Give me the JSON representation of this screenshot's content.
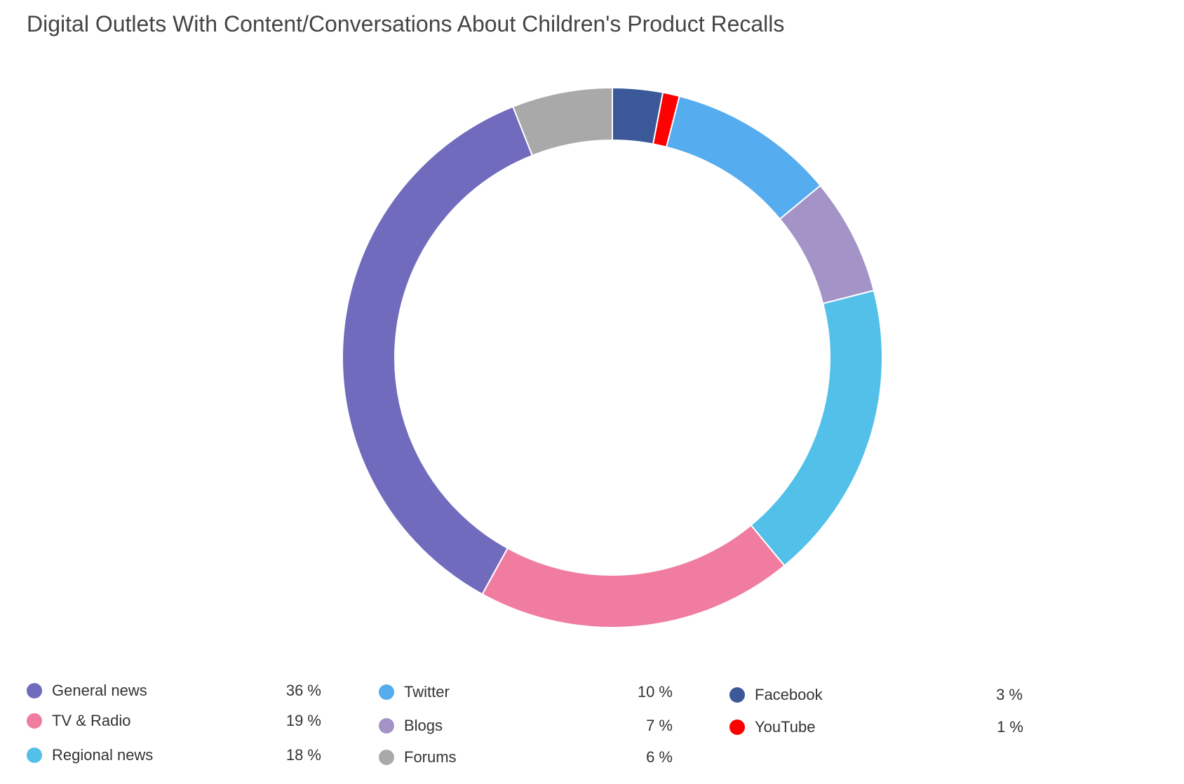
{
  "chart_data": {
    "type": "pie",
    "subtype": "donut",
    "title": "Digital Outlets With Content/Conversations About Children's Product Recalls",
    "slices": [
      {
        "label": "Facebook",
        "value": 3,
        "value_label": "3 %",
        "color": "#3b5998"
      },
      {
        "label": "YouTube",
        "value": 1,
        "value_label": "1 %",
        "color": "#ff0000"
      },
      {
        "label": "Twitter",
        "value": 10,
        "value_label": "10 %",
        "color": "#55acee"
      },
      {
        "label": "Blogs",
        "value": 7,
        "value_label": "7 %",
        "color": "#a393c6"
      },
      {
        "label": "Regional news",
        "value": 18,
        "value_label": "18 %",
        "color": "#52c0e8"
      },
      {
        "label": "TV & Radio",
        "value": 19,
        "value_label": "19 %",
        "color": "#f07da0"
      },
      {
        "label": "General news",
        "value": 36,
        "value_label": "36 %",
        "color": "#706bbd"
      },
      {
        "label": "Forums",
        "value": 6,
        "value_label": "6 %",
        "color": "#a9a9a9"
      }
    ],
    "legend_placement": "bottom",
    "legend_order": [
      "General news",
      "TV & Radio",
      "Regional news",
      "Twitter",
      "Blogs",
      "Forums",
      "Facebook",
      "YouTube"
    ]
  }
}
